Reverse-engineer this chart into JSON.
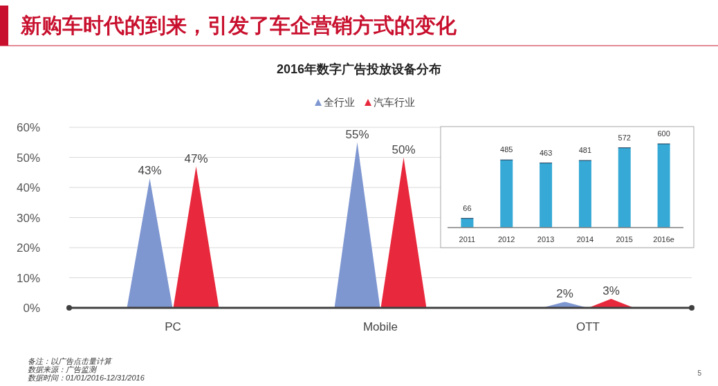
{
  "chart_data": [
    {
      "type": "bar",
      "title": "2016年数字广告投放设备分布",
      "categories": [
        "PC",
        "Mobile",
        "OTT"
      ],
      "series": [
        {
          "name": "全行业",
          "color": "#7f97d1",
          "values": [
            43,
            55,
            2
          ],
          "value_labels": [
            "43%",
            "55%",
            "2%"
          ]
        },
        {
          "name": "汽车行业",
          "color": "#e8283c",
          "values": [
            47,
            50,
            3
          ],
          "value_labels": [
            "47%",
            "50%",
            "3%"
          ]
        }
      ],
      "ylim": [
        0,
        60
      ],
      "yticks": [
        {
          "value": 0,
          "label": "0%"
        },
        {
          "value": 10,
          "label": "10%"
        },
        {
          "value": 20,
          "label": "20%"
        },
        {
          "value": 30,
          "label": "30%"
        },
        {
          "value": 40,
          "label": "40%"
        },
        {
          "value": 50,
          "label": "50%"
        },
        {
          "value": 60,
          "label": "60%"
        }
      ],
      "grid": "y",
      "legend": "top",
      "marker": "triangle",
      "annotations": [
        "新购车时代的到来，引发了车企营销方式的变化",
        "备注：以广告点击量计算",
        "数据来源：广告监测",
        "数据时间：01/01/2016-12/31/2016",
        "5"
      ]
    },
    {
      "type": "bar",
      "categories": [
        "2011",
        "2012",
        "2013",
        "2014",
        "2015",
        "2016e"
      ],
      "values": [
        66,
        485,
        463,
        481,
        572,
        600
      ],
      "color": "#36a9d6",
      "data_labels": true
    }
  ]
}
